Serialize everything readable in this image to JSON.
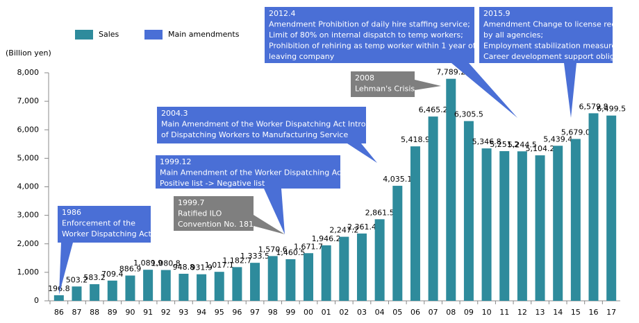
{
  "chart_data": {
    "type": "bar",
    "y_axis_label": "(Billion yen)",
    "categories": [
      "86",
      "87",
      "88",
      "89",
      "90",
      "91",
      "92",
      "93",
      "94",
      "95",
      "96",
      "97",
      "98",
      "99",
      "00",
      "01",
      "02",
      "03",
      "04",
      "05",
      "06",
      "07",
      "08",
      "09",
      "10",
      "11",
      "12",
      "13",
      "14",
      "15",
      "16",
      "17"
    ],
    "series": [
      {
        "name": "Sales",
        "color": "#2e8b9c",
        "values": [
          196.8,
          503.2,
          583.2,
          709.4,
          886.9,
          1089.9,
          1080.8,
          948.8,
          931.9,
          1017.1,
          1182.7,
          1333.5,
          1570.6,
          1460.5,
          1671.7,
          1946.2,
          2247.2,
          2361.4,
          2861.5,
          4035.1,
          5418.9,
          6465.2,
          7789.2,
          6305.5,
          5346.8,
          5251.2,
          5244.5,
          5104.2,
          5439.4,
          5679.0,
          6579.8,
          6499.5
        ],
        "value_labels": [
          "196.8",
          "503.2",
          "583.2",
          "709.4",
          "886.9",
          "1,089.9",
          "1,080.8",
          "948.8",
          "931.9",
          "1,017.1",
          "1,182.7",
          "1,333.5",
          "1,570.6",
          "1,460.5",
          "1,671.7",
          "1,946.2",
          "2,247.2",
          "2,361.4",
          "2,861.5",
          "4,035.1",
          "5,418.9",
          "6,465.2",
          "7,789.2",
          "6,305.5",
          "5,346.8",
          "5,251.2",
          "5,244.5",
          "5,104.2",
          "5,439.4",
          "5,679.0",
          "6,579.8",
          "6,499.5"
        ]
      }
    ],
    "legend_extra": {
      "name": "Main amendments",
      "color": "#4a6fd6"
    },
    "ylim": [
      0,
      8000
    ],
    "yticks": [
      0,
      {
        "value": 1000,
        "label": "1,000"
      },
      {
        "value": 2000,
        "label": "2,000"
      },
      {
        "value": 3000,
        "label": "3,000"
      },
      {
        "value": 4000,
        "label": "4,000"
      },
      {
        "value": 5000,
        "label": "5,000"
      },
      {
        "value": 6000,
        "label": "6,000"
      },
      {
        "value": 7000,
        "label": "7,000"
      },
      {
        "value": 8000,
        "label": "8,000"
      }
    ],
    "annotations": [
      {
        "color": "#4a6fd6",
        "lines": [
          "1986",
          "Enforcement of the",
          "Worker Dispatching Act"
        ]
      },
      {
        "color": "#7f7f7f",
        "lines": [
          "1999.7",
          "Ratified ILO",
          "Convention No. 181"
        ]
      },
      {
        "color": "#4a6fd6",
        "lines": [
          "1999.12",
          "Main Amendment of the Worker Dispatching Act",
          "Positive list -> Negative list"
        ]
      },
      {
        "color": "#4a6fd6",
        "lines": [
          "2004.3",
          "Main Amendment of the Worker Dispatching Act Introduction",
          "of Dispatching Workers to Manufacturing Service"
        ]
      },
      {
        "color": "#7f7f7f",
        "lines": [
          "2008",
          "Lehman's Crisis"
        ]
      },
      {
        "color": "#4a6fd6",
        "lines": [
          "2012.4",
          "Amendment Prohibition of daily hire staffing service;",
          "Limit of 80% on internal dispatch to temp workers;",
          "Prohibition of rehiring as temp worker within 1 year of",
          "leaving company"
        ]
      },
      {
        "color": "#4a6fd6",
        "lines": [
          "2015.9",
          "Amendment Change to license required",
          "by all agencies;",
          "Employment stabilization measures;",
          "Career development support obligation"
        ]
      }
    ]
  }
}
